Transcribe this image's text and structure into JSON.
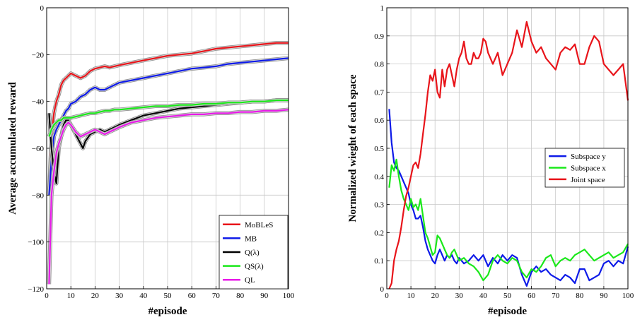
{
  "chart_data": [
    {
      "type": "line",
      "xlabel": "#episode",
      "ylabel": "Average accumulated reward",
      "xlim": [
        0,
        100
      ],
      "ylim": [
        -120,
        0
      ],
      "xticks": [
        0,
        10,
        20,
        30,
        40,
        50,
        60,
        70,
        80,
        90,
        100
      ],
      "yticks": [
        -120,
        -100,
        -80,
        -60,
        -40,
        -20,
        0
      ],
      "ytick_labels": [
        "−120",
        "−100",
        "−80",
        "−60",
        "−40",
        "−20",
        "0"
      ],
      "grid": true,
      "legend": "bottom-right",
      "confidence_band": true,
      "series": [
        {
          "name": "MoBLeS",
          "color": "#e8141a",
          "band_color": "#888888",
          "x": [
            1,
            2,
            3,
            4,
            5,
            6,
            7,
            8,
            9,
            10,
            12,
            14,
            16,
            18,
            20,
            22,
            24,
            26,
            28,
            30,
            35,
            40,
            45,
            50,
            55,
            60,
            65,
            70,
            75,
            80,
            85,
            90,
            95,
            100
          ],
          "y": [
            -80,
            -55,
            -45,
            -40,
            -37,
            -33,
            -31,
            -30,
            -29,
            -28,
            -29,
            -30,
            -29,
            -27,
            -26,
            -25.5,
            -25,
            -25.5,
            -25,
            -24.5,
            -23.5,
            -22.5,
            -21.5,
            -20.5,
            -20,
            -19.5,
            -18.5,
            -17.5,
            -17,
            -16.5,
            -16,
            -15.5,
            -15,
            -15
          ]
        },
        {
          "name": "MB",
          "color": "#0d1ae8",
          "band_color": "#888888",
          "x": [
            1,
            2,
            3,
            4,
            5,
            6,
            7,
            8,
            9,
            10,
            12,
            14,
            16,
            18,
            20,
            22,
            24,
            26,
            28,
            30,
            35,
            40,
            45,
            50,
            55,
            60,
            65,
            70,
            75,
            80,
            85,
            90,
            95,
            100
          ],
          "y": [
            -80,
            -65,
            -55,
            -52,
            -50,
            -48,
            -46,
            -44,
            -43,
            -41,
            -40,
            -38,
            -37,
            -35,
            -34,
            -35,
            -35,
            -34,
            -33,
            -32,
            -31,
            -30,
            -29,
            -28,
            -27,
            -26,
            -25.5,
            -25,
            -24,
            -23.5,
            -23,
            -22.5,
            -22,
            -21.5
          ]
        },
        {
          "name": "Q(λ)",
          "color": "#000000",
          "band_color": "#888888",
          "x": [
            1,
            2,
            3,
            4,
            5,
            6,
            7,
            8,
            9,
            10,
            12,
            14,
            15,
            16,
            18,
            20,
            22,
            24,
            26,
            28,
            30,
            35,
            40,
            45,
            50,
            55,
            60,
            65,
            70,
            75,
            80,
            85,
            90,
            95,
            100
          ],
          "y": [
            -45,
            -60,
            -70,
            -75,
            -60,
            -55,
            -50,
            -48,
            -48,
            -50,
            -54,
            -58,
            -60,
            -57,
            -54,
            -53,
            -52,
            -53,
            -52,
            -51,
            -50,
            -48,
            -46,
            -45,
            -44,
            -43,
            -42.5,
            -42,
            -41.5,
            -41,
            -40.5,
            -40,
            -40,
            -39.5,
            -39.5
          ]
        },
        {
          "name": "QS(λ)",
          "color": "#1ae81a",
          "band_color": "#888888",
          "x": [
            1,
            2,
            3,
            4,
            5,
            6,
            7,
            8,
            9,
            10,
            12,
            14,
            16,
            18,
            20,
            22,
            24,
            26,
            28,
            30,
            35,
            40,
            45,
            50,
            55,
            60,
            65,
            70,
            75,
            80,
            85,
            90,
            95,
            100
          ],
          "y": [
            -55,
            -52,
            -50,
            -49,
            -48,
            -48,
            -47,
            -47,
            -47,
            -47,
            -46.5,
            -46,
            -45.5,
            -45,
            -45,
            -44.5,
            -44,
            -44,
            -43.5,
            -43.5,
            -43,
            -42.5,
            -42,
            -42,
            -41.5,
            -41.5,
            -41,
            -41,
            -40.5,
            -40.5,
            -40,
            -40,
            -39.5,
            -39.5
          ]
        },
        {
          "name": "QL",
          "color": "#e81ae8",
          "band_color": "#888888",
          "x": [
            1,
            2,
            3,
            4,
            5,
            6,
            7,
            8,
            9,
            10,
            12,
            14,
            16,
            18,
            20,
            22,
            24,
            26,
            28,
            30,
            35,
            40,
            45,
            50,
            55,
            60,
            65,
            70,
            75,
            80,
            85,
            90,
            95,
            100
          ],
          "y": [
            -118,
            -80,
            -70,
            -62,
            -58,
            -55,
            -52,
            -50,
            -49,
            -50,
            -53,
            -55,
            -54,
            -53,
            -52,
            -53,
            -54,
            -53,
            -52,
            -51,
            -49,
            -48,
            -47,
            -46.5,
            -46,
            -45.5,
            -45.5,
            -45,
            -45,
            -44.5,
            -44.5,
            -44,
            -44,
            -43.5
          ]
        }
      ]
    },
    {
      "type": "line",
      "xlabel": "#episode",
      "ylabel": "Normalized wieght of each space",
      "xlim": [
        0,
        100
      ],
      "ylim": [
        0,
        1
      ],
      "xticks": [
        0,
        10,
        20,
        30,
        40,
        50,
        60,
        70,
        80,
        90,
        100
      ],
      "yticks": [
        0,
        0.1,
        0.2,
        0.3,
        0.4,
        0.5,
        0.6,
        0.7,
        0.8,
        0.9,
        1
      ],
      "ytick_labels": [
        "0",
        "0.1",
        "0.2",
        "0.3",
        "0.4",
        "0.5",
        "0.6",
        "0.7",
        "0.8",
        "0.9",
        "1"
      ],
      "grid": true,
      "legend": "center-right",
      "series": [
        {
          "name": "Subspace y",
          "color": "#0d1ae8",
          "x": [
            1,
            2,
            3,
            4,
            5,
            6,
            7,
            8,
            9,
            10,
            11,
            12,
            13,
            14,
            15,
            16,
            17,
            18,
            19,
            20,
            21,
            22,
            23,
            24,
            25,
            26,
            27,
            28,
            29,
            30,
            32,
            34,
            36,
            38,
            40,
            42,
            44,
            46,
            48,
            50,
            52,
            54,
            56,
            58,
            60,
            62,
            64,
            66,
            68,
            70,
            72,
            74,
            76,
            78,
            80,
            82,
            84,
            86,
            88,
            90,
            92,
            94,
            96,
            98,
            100
          ],
          "y": [
            0.64,
            0.52,
            0.45,
            0.43,
            0.42,
            0.4,
            0.38,
            0.36,
            0.34,
            0.3,
            0.28,
            0.25,
            0.25,
            0.26,
            0.22,
            0.17,
            0.14,
            0.12,
            0.1,
            0.09,
            0.12,
            0.14,
            0.12,
            0.1,
            0.12,
            0.11,
            0.12,
            0.1,
            0.09,
            0.11,
            0.09,
            0.1,
            0.12,
            0.1,
            0.12,
            0.08,
            0.11,
            0.09,
            0.12,
            0.1,
            0.12,
            0.11,
            0.05,
            0.01,
            0.06,
            0.08,
            0.06,
            0.07,
            0.05,
            0.04,
            0.03,
            0.05,
            0.04,
            0.02,
            0.07,
            0.07,
            0.03,
            0.04,
            0.05,
            0.09,
            0.1,
            0.08,
            0.1,
            0.09,
            0.15
          ]
        },
        {
          "name": "Subspace x",
          "color": "#1ae81a",
          "x": [
            1,
            2,
            3,
            4,
            5,
            6,
            7,
            8,
            9,
            10,
            11,
            12,
            13,
            14,
            15,
            16,
            17,
            18,
            19,
            20,
            21,
            22,
            23,
            24,
            25,
            26,
            27,
            28,
            29,
            30,
            32,
            34,
            36,
            38,
            40,
            42,
            44,
            46,
            48,
            50,
            52,
            54,
            56,
            58,
            60,
            62,
            64,
            66,
            68,
            70,
            72,
            74,
            76,
            78,
            80,
            82,
            84,
            86,
            88,
            90,
            92,
            94,
            96,
            98,
            100
          ],
          "y": [
            0.36,
            0.44,
            0.42,
            0.46,
            0.4,
            0.35,
            0.32,
            0.3,
            0.28,
            0.32,
            0.29,
            0.3,
            0.28,
            0.32,
            0.26,
            0.2,
            0.18,
            0.15,
            0.12,
            0.13,
            0.19,
            0.18,
            0.16,
            0.14,
            0.12,
            0.11,
            0.13,
            0.14,
            0.12,
            0.1,
            0.11,
            0.09,
            0.08,
            0.06,
            0.03,
            0.05,
            0.1,
            0.12,
            0.1,
            0.09,
            0.11,
            0.1,
            0.06,
            0.04,
            0.07,
            0.06,
            0.08,
            0.11,
            0.12,
            0.08,
            0.1,
            0.11,
            0.1,
            0.12,
            0.13,
            0.14,
            0.12,
            0.1,
            0.11,
            0.12,
            0.13,
            0.11,
            0.12,
            0.13,
            0.16
          ]
        },
        {
          "name": "Joint space",
          "color": "#e8141a",
          "x": [
            1,
            2,
            3,
            4,
            5,
            6,
            7,
            8,
            9,
            10,
            11,
            12,
            13,
            14,
            15,
            16,
            17,
            18,
            19,
            20,
            21,
            22,
            23,
            24,
            25,
            26,
            27,
            28,
            29,
            30,
            31,
            32,
            33,
            34,
            35,
            36,
            37,
            38,
            39,
            40,
            41,
            42,
            43,
            44,
            45,
            46,
            47,
            48,
            49,
            50,
            52,
            54,
            56,
            58,
            60,
            62,
            64,
            66,
            68,
            70,
            72,
            74,
            76,
            78,
            80,
            82,
            84,
            86,
            88,
            90,
            92,
            94,
            96,
            98,
            100
          ],
          "y": [
            0.0,
            0.02,
            0.1,
            0.14,
            0.17,
            0.22,
            0.28,
            0.33,
            0.36,
            0.4,
            0.44,
            0.45,
            0.43,
            0.48,
            0.55,
            0.62,
            0.7,
            0.76,
            0.74,
            0.78,
            0.7,
            0.68,
            0.78,
            0.72,
            0.78,
            0.8,
            0.76,
            0.72,
            0.78,
            0.82,
            0.84,
            0.88,
            0.82,
            0.8,
            0.8,
            0.84,
            0.82,
            0.82,
            0.84,
            0.89,
            0.88,
            0.84,
            0.82,
            0.8,
            0.82,
            0.84,
            0.8,
            0.76,
            0.78,
            0.8,
            0.84,
            0.92,
            0.86,
            0.95,
            0.88,
            0.84,
            0.86,
            0.82,
            0.8,
            0.78,
            0.84,
            0.86,
            0.85,
            0.87,
            0.8,
            0.8,
            0.86,
            0.9,
            0.88,
            0.8,
            0.78,
            0.76,
            0.78,
            0.8,
            0.67
          ]
        }
      ]
    }
  ]
}
